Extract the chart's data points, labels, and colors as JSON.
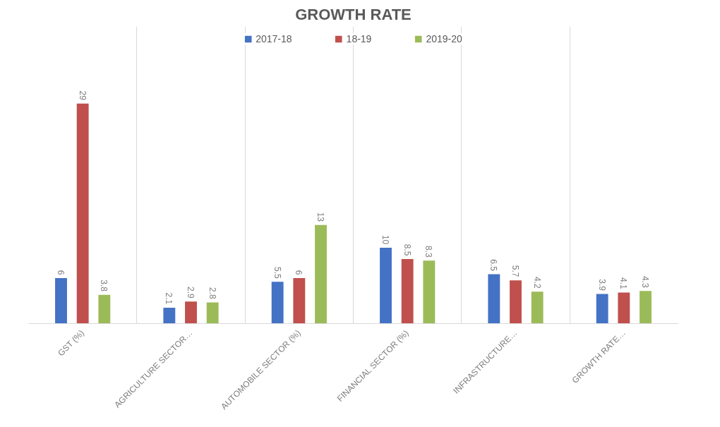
{
  "chart_data": {
    "type": "bar",
    "title": "GROWTH RATE",
    "categories": [
      "GST (%)",
      "AGRICULTURE SECTOR…",
      "AUTOMOBILE SECTOR (%)",
      "FINANCIAL SECTOR (%)",
      "INFRASTRUCTURE…",
      "GROWTH RATE…"
    ],
    "series": [
      {
        "name": "2017-18",
        "color": "#4472c4",
        "values": [
          6,
          2.1,
          5.5,
          10,
          6.5,
          3.9
        ]
      },
      {
        "name": "18-19",
        "color": "#c0504d",
        "values": [
          29,
          2.9,
          6,
          8.5,
          5.7,
          4.1
        ]
      },
      {
        "name": "2019-20",
        "color": "#9bbb59",
        "values": [
          3.8,
          2.8,
          13,
          8.3,
          4.2,
          4.3
        ]
      }
    ],
    "data_labels": true,
    "grid": "x",
    "legend": "top",
    "tick_labels": "x"
  }
}
